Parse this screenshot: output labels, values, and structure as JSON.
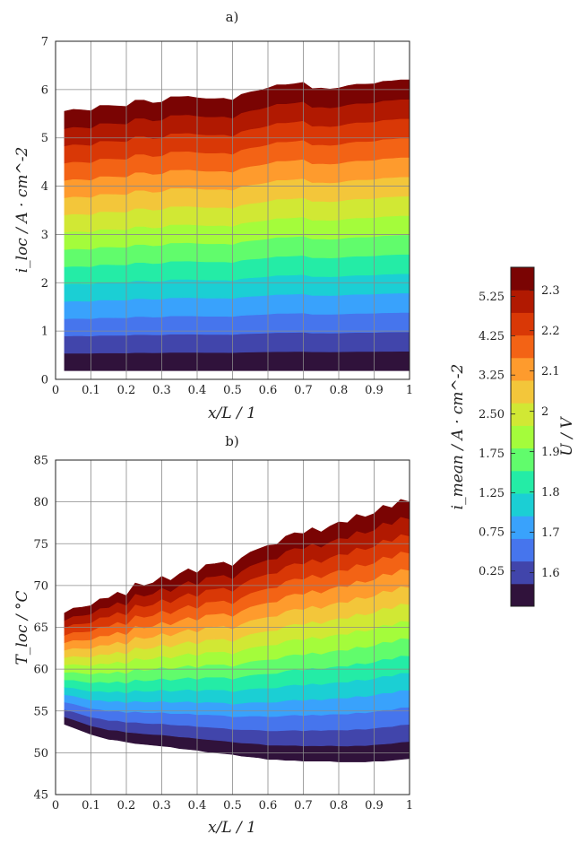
{
  "chart_data": [
    {
      "panel": "a)",
      "type": "area",
      "title": "a)",
      "xlabel": "x/L / 1",
      "ylabel": "i_loc / A · cm^-2",
      "xlim": [
        0,
        1
      ],
      "ylim": [
        0,
        7
      ],
      "xticks": [
        "0",
        "0.1",
        "0.2",
        "0.3",
        "0.4",
        "0.5",
        "0.6",
        "0.7",
        "0.8",
        "0.9",
        "1"
      ],
      "yticks": [
        "0",
        "1",
        "2",
        "3",
        "4",
        "5",
        "6",
        "7"
      ],
      "grid": true,
      "x": [
        0.025,
        0.05,
        0.075,
        0.1,
        0.125,
        0.15,
        0.175,
        0.2,
        0.225,
        0.25,
        0.275,
        0.3,
        0.325,
        0.35,
        0.375,
        0.4,
        0.425,
        0.45,
        0.475,
        0.5,
        0.525,
        0.55,
        0.575,
        0.6,
        0.625,
        0.65,
        0.675,
        0.7,
        0.725,
        0.75,
        0.775,
        0.8,
        0.825,
        0.85,
        0.875,
        0.9,
        0.925,
        0.95,
        0.975,
        1.0
      ],
      "top": [
        5.55,
        5.59,
        5.58,
        5.56,
        5.67,
        5.67,
        5.66,
        5.65,
        5.78,
        5.78,
        5.72,
        5.74,
        5.85,
        5.85,
        5.86,
        5.83,
        5.81,
        5.81,
        5.82,
        5.78,
        5.9,
        5.95,
        5.98,
        6.03,
        6.1,
        6.1,
        6.12,
        6.15,
        6.02,
        6.03,
        6.01,
        6.03,
        6.08,
        6.11,
        6.11,
        6.12,
        6.17,
        6.18,
        6.2,
        6.2
      ],
      "bottom": [
        0.18,
        0.18,
        0.18,
        0.18,
        0.18,
        0.18,
        0.18,
        0.18,
        0.18,
        0.18,
        0.18,
        0.18,
        0.18,
        0.18,
        0.18,
        0.18,
        0.18,
        0.18,
        0.18,
        0.18,
        0.18,
        0.18,
        0.18,
        0.18,
        0.18,
        0.18,
        0.18,
        0.18,
        0.18,
        0.18,
        0.18,
        0.18,
        0.18,
        0.18,
        0.18,
        0.18,
        0.18,
        0.18,
        0.18,
        0.18
      ],
      "color_by": "mean current density (levels from bottom to top)"
    },
    {
      "panel": "b)",
      "type": "area",
      "title": "b)",
      "xlabel": "x/L / 1",
      "ylabel": "T_loc / °C",
      "xlim": [
        0,
        1
      ],
      "ylim": [
        45,
        85
      ],
      "xticks": [
        "0",
        "0.1",
        "0.2",
        "0.3",
        "0.4",
        "0.5",
        "0.6",
        "0.7",
        "0.8",
        "0.9",
        "1"
      ],
      "yticks": [
        "45",
        "50",
        "55",
        "60",
        "65",
        "70",
        "75",
        "80",
        "85"
      ],
      "grid": true,
      "x": [
        0.025,
        0.05,
        0.075,
        0.1,
        0.125,
        0.15,
        0.175,
        0.2,
        0.225,
        0.25,
        0.275,
        0.3,
        0.325,
        0.35,
        0.375,
        0.4,
        0.425,
        0.45,
        0.475,
        0.5,
        0.525,
        0.55,
        0.575,
        0.6,
        0.625,
        0.65,
        0.675,
        0.7,
        0.725,
        0.75,
        0.775,
        0.8,
        0.825,
        0.85,
        0.875,
        0.9,
        0.925,
        0.95,
        0.975,
        1.0
      ],
      "top": [
        66.7,
        67.3,
        67.4,
        67.6,
        68.4,
        68.5,
        69.2,
        68.8,
        70.3,
        70.0,
        70.3,
        71.1,
        70.6,
        71.4,
        72.0,
        71.5,
        72.5,
        72.6,
        72.8,
        72.3,
        73.3,
        74.0,
        74.4,
        74.8,
        74.9,
        75.9,
        76.3,
        76.2,
        76.9,
        76.4,
        77.1,
        77.6,
        77.5,
        78.5,
        78.2,
        78.6,
        79.6,
        79.3,
        80.3,
        80.0
      ],
      "bottom": [
        53.4,
        53.0,
        52.6,
        52.2,
        51.9,
        51.6,
        51.5,
        51.3,
        51.1,
        51.0,
        50.9,
        50.8,
        50.7,
        50.5,
        50.4,
        50.3,
        50.1,
        50.0,
        49.9,
        49.8,
        49.6,
        49.5,
        49.4,
        49.2,
        49.2,
        49.1,
        49.1,
        49.0,
        49.0,
        49.0,
        49.0,
        48.9,
        48.9,
        48.9,
        48.9,
        49.0,
        49.0,
        49.1,
        49.2,
        49.3
      ],
      "color_by": "cell voltage (levels from bottom to top)"
    }
  ],
  "colorbar": {
    "left_label": "i_mean / A · cm^-2",
    "right_label": "U / V",
    "left_ticks": [
      "0.25",
      "0.75",
      "1.25",
      "1.75",
      "2.50",
      "3.25",
      "4.25",
      "5.25"
    ],
    "left_tick_fractions": [
      0.104,
      0.219,
      0.335,
      0.451,
      0.567,
      0.682,
      0.798,
      0.914
    ],
    "right_ticks": [
      "1.6",
      "1.7",
      "1.8",
      "1.9",
      "2",
      "2.1",
      "2.2",
      "2.3"
    ],
    "right_tick_fractions": [
      0.099,
      0.218,
      0.337,
      0.456,
      0.575,
      0.694,
      0.813,
      0.932
    ],
    "colormap": [
      "#30123b",
      "#4145ab",
      "#4675ed",
      "#39a2fc",
      "#1bcfd4",
      "#24eca6",
      "#61fc6c",
      "#a4fc3b",
      "#d1e834",
      "#f3c63a",
      "#fe9b2d",
      "#f36315",
      "#d93806",
      "#b11901",
      "#7a0403"
    ]
  }
}
